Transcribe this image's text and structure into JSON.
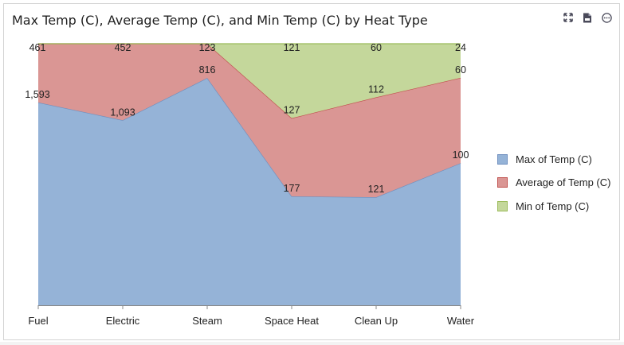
{
  "title": "Max Temp (C), Average Temp (C), and Min Temp (C) by Heat Type",
  "toolbar": {
    "icons": [
      "expand-icon",
      "export-icon",
      "more-icon"
    ]
  },
  "chart_data": {
    "type": "area",
    "stacked": "100%",
    "categories": [
      "Fuel",
      "Electric",
      "Steam",
      "Space Heat",
      "Clean Up",
      "Water"
    ],
    "series": [
      {
        "name": "Max of Temp (C)",
        "values": [
          1593,
          1093,
          816,
          177,
          121,
          100
        ],
        "color": "#95b3d7",
        "line": "#6f8fbf"
      },
      {
        "name": "Average of Temp (C)",
        "values": [
          461,
          452,
          123,
          127,
          112,
          60
        ],
        "color": "#da9694",
        "line": "#c0504d"
      },
      {
        "name": "Min of Temp (C)",
        "values": [
          0,
          0,
          0,
          121,
          60,
          24
        ],
        "color": "#c4d79b",
        "line": "#9bbb59"
      }
    ],
    "labels": [
      [
        "1,593",
        "1,093",
        "816",
        "177",
        "121",
        "100"
      ],
      [
        "461",
        "452",
        "123",
        "127",
        "112",
        "60"
      ],
      [
        "",
        "",
        "",
        "121",
        "60",
        "24"
      ]
    ],
    "legend_position": "right",
    "grid": false
  }
}
